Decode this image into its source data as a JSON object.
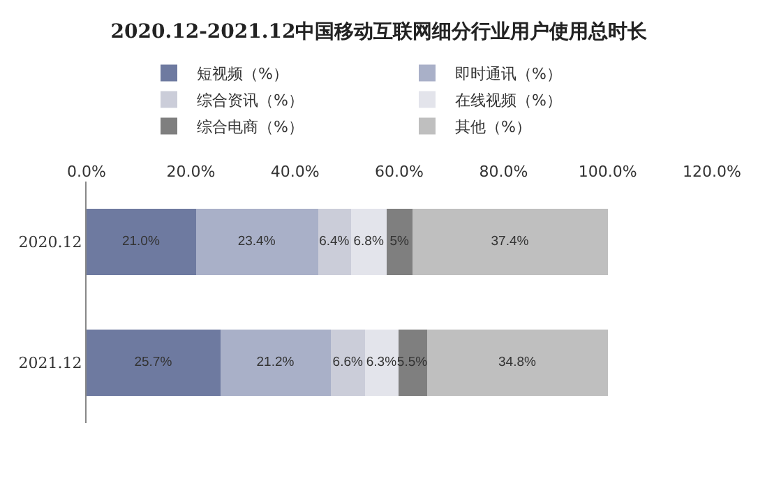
{
  "chart_data": {
    "type": "bar",
    "orientation": "horizontal",
    "stacked": true,
    "title": "2020.12-2021.12中国移动互联网细分行业用户使用总时长",
    "categories": [
      "2020.12",
      "2021.12"
    ],
    "series": [
      {
        "name": "短视频（%）",
        "color": "#6e7aa0",
        "values": [
          21.0,
          25.7
        ],
        "value_labels": [
          "21.0%",
          "25.7%"
        ]
      },
      {
        "name": "即时通讯（%）",
        "color": "#a9b0c8",
        "values": [
          23.4,
          21.2
        ],
        "value_labels": [
          "23.4%",
          "21.2%"
        ]
      },
      {
        "name": "综合资讯（%）",
        "color": "#cbcdd9",
        "values": [
          6.4,
          6.6
        ],
        "value_labels": [
          "6.4%",
          "6.6%"
        ]
      },
      {
        "name": "在线视频（%）",
        "color": "#e3e4eb",
        "values": [
          6.8,
          6.3
        ],
        "value_labels": [
          "6.8%",
          "6.3%"
        ]
      },
      {
        "name": "综合电商（%）",
        "color": "#7f7f7f",
        "values": [
          5,
          5.5
        ],
        "value_labels": [
          "5%",
          "5.5%"
        ]
      },
      {
        "name": "其他（%）",
        "color": "#bfbfbf",
        "values": [
          37.4,
          34.8
        ],
        "value_labels": [
          "37.4%",
          "34.8%"
        ]
      }
    ],
    "xlim": [
      0,
      120
    ],
    "xticks": [
      {
        "value": 0,
        "label": "0.0%"
      },
      {
        "value": 20,
        "label": "20.0%"
      },
      {
        "value": 40,
        "label": "40.0%"
      },
      {
        "value": 60,
        "label": "60.0%"
      },
      {
        "value": 80,
        "label": "80.0%"
      },
      {
        "value": 100,
        "label": "100.0%"
      },
      {
        "value": 120,
        "label": "120.0%"
      }
    ],
    "legend": "top"
  }
}
